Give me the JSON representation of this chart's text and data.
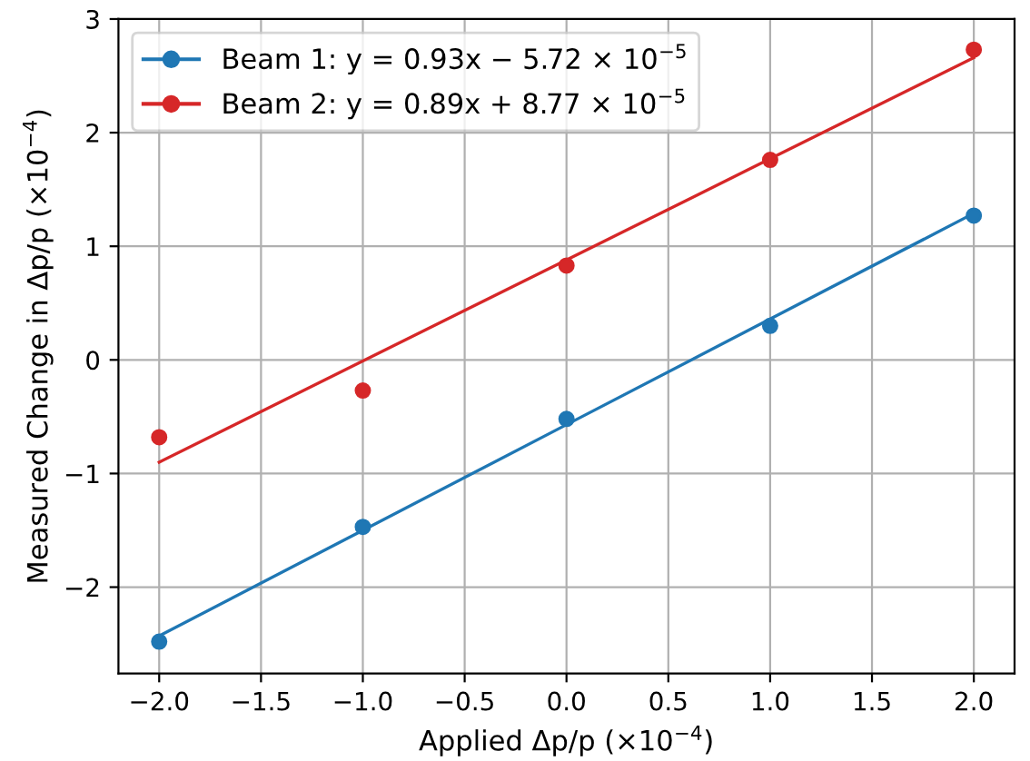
{
  "chart_data": {
    "type": "scatter",
    "xlabel": "Applied Δp/p (×10$^{−4}$)",
    "ylabel": "Measured Change in Δp/p (×10$^{−4}$)",
    "x": [
      -2,
      -1,
      0,
      1,
      2
    ],
    "series": [
      {
        "name": "Beam 1: y = 0.93x − 5.72 × 10$^{−5}$",
        "color": "#1f77b4",
        "values": [
          -2.48,
          -1.47,
          -0.52,
          0.3,
          1.27
        ]
      },
      {
        "name": "Beam 2: y = 0.89x + 8.77 × 10$^{−5}$",
        "color": "#d62728",
        "values": [
          -0.68,
          -0.27,
          0.83,
          1.76,
          2.73
        ]
      },
      {
        "type": "line",
        "color": "#1f77b4",
        "marker": "none",
        "values": [
          -2.43,
          -1.5,
          -0.57,
          0.36,
          1.29
        ]
      },
      {
        "type": "line",
        "color": "#d62728",
        "marker": "none",
        "values": [
          -0.9,
          -0.01,
          0.88,
          1.77,
          2.66
        ]
      }
    ],
    "xlim": [
      -2.2,
      2.2
    ],
    "xticks": [
      {
        "value": -2,
        "label": "−2.0"
      },
      {
        "value": -1.5,
        "label": "−1.5"
      },
      {
        "value": -1,
        "label": "−1.0"
      },
      {
        "value": -0.5,
        "label": "−0.5"
      },
      {
        "value": 0,
        "label": "0.0"
      },
      0.5,
      {
        "value": 1,
        "label": "1.0"
      },
      1.5,
      {
        "value": 2,
        "label": "2.0"
      }
    ],
    "ylim": [
      -2.76,
      3
    ],
    "yticks": [
      {
        "value": -2,
        "label": "−2"
      },
      {
        "value": -1,
        "label": "−1"
      },
      0,
      1,
      2,
      3
    ],
    "grid": true,
    "legend": "top left",
    "marker": "circle",
    "line_style": "solid"
  }
}
